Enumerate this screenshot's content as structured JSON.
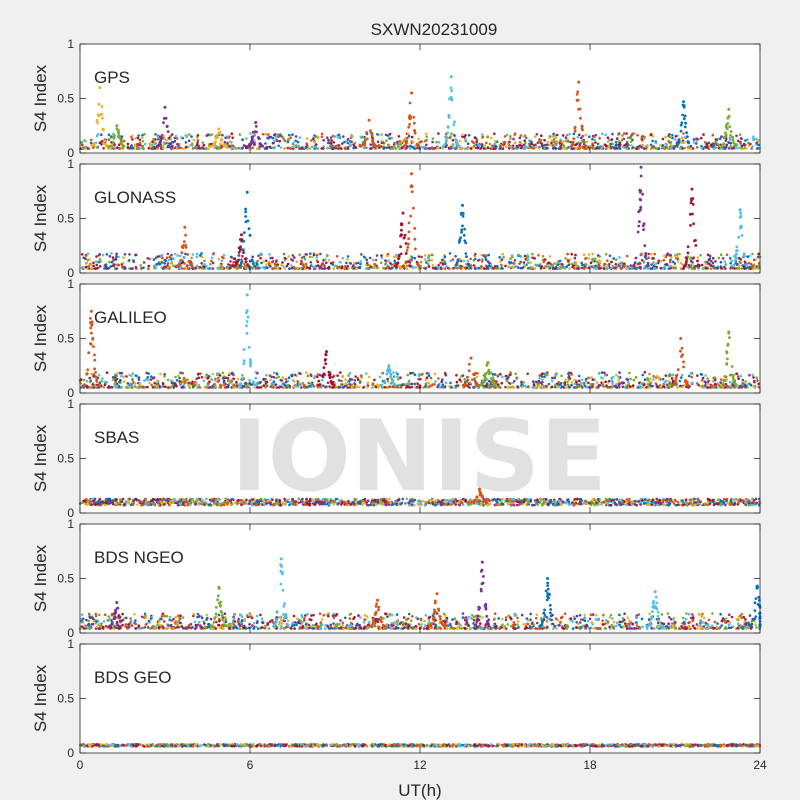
{
  "chart_data": {
    "type": "scatter",
    "title": "SXWN20231009",
    "xlabel": "UT(h)",
    "ylabel": "S4 Index",
    "xlim": [
      0,
      24
    ],
    "ylim": [
      0,
      1
    ],
    "xticks": [
      0,
      6,
      12,
      18,
      24
    ],
    "xtick_labels": [
      "0",
      "6",
      "12",
      "18",
      "24"
    ],
    "yticks": [
      0,
      0.5,
      1
    ],
    "ytick_labels": [
      "0",
      "0.5",
      "1"
    ],
    "watermark": "IONISE",
    "series_colors": [
      "#0072bd",
      "#d95319",
      "#edb120",
      "#7e2f8e",
      "#77ac30",
      "#4dbeee",
      "#a2142f"
    ],
    "panels": [
      {
        "name": "GPS",
        "baseline": 0.06,
        "spikes": [
          {
            "t": 0.7,
            "peak": 0.6,
            "color": "#edb120"
          },
          {
            "t": 1.3,
            "peak": 0.25,
            "color": "#77ac30"
          },
          {
            "t": 3.0,
            "peak": 0.42,
            "color": "#7e2f8e"
          },
          {
            "t": 4.9,
            "peak": 0.22,
            "color": "#edb120"
          },
          {
            "t": 6.2,
            "peak": 0.28,
            "color": "#7e2f8e"
          },
          {
            "t": 10.2,
            "peak": 0.3,
            "color": "#d95319"
          },
          {
            "t": 11.7,
            "peak": 0.55,
            "color": "#d95319"
          },
          {
            "t": 13.1,
            "peak": 0.7,
            "color": "#4dbeee"
          },
          {
            "t": 17.6,
            "peak": 0.65,
            "color": "#d95319"
          },
          {
            "t": 21.3,
            "peak": 0.47,
            "color": "#0072bd"
          },
          {
            "t": 22.9,
            "peak": 0.4,
            "color": "#77ac30"
          }
        ]
      },
      {
        "name": "GLONASS",
        "baseline": 0.06,
        "spikes": [
          {
            "t": 3.7,
            "peak": 0.42,
            "color": "#d95319"
          },
          {
            "t": 5.7,
            "peak": 0.35,
            "color": "#a2142f"
          },
          {
            "t": 5.9,
            "peak": 0.74,
            "color": "#0072bd"
          },
          {
            "t": 11.4,
            "peak": 0.55,
            "color": "#a2142f"
          },
          {
            "t": 11.7,
            "peak": 0.91,
            "color": "#d95319"
          },
          {
            "t": 13.5,
            "peak": 0.62,
            "color": "#0072bd"
          },
          {
            "t": 19.8,
            "peak": 0.97,
            "color": "#7e2f8e"
          },
          {
            "t": 21.6,
            "peak": 0.77,
            "color": "#a2142f"
          },
          {
            "t": 23.3,
            "peak": 0.58,
            "color": "#4dbeee"
          }
        ]
      },
      {
        "name": "GALILEO",
        "baseline": 0.07,
        "spikes": [
          {
            "t": 0.4,
            "peak": 0.75,
            "color": "#d95319"
          },
          {
            "t": 5.9,
            "peak": 0.9,
            "color": "#4dbeee"
          },
          {
            "t": 8.7,
            "peak": 0.38,
            "color": "#a2142f"
          },
          {
            "t": 10.9,
            "peak": 0.25,
            "color": "#4dbeee"
          },
          {
            "t": 13.8,
            "peak": 0.32,
            "color": "#d95319"
          },
          {
            "t": 14.4,
            "peak": 0.28,
            "color": "#77ac30"
          },
          {
            "t": 21.2,
            "peak": 0.5,
            "color": "#d95319"
          },
          {
            "t": 22.9,
            "peak": 0.56,
            "color": "#77ac30"
          }
        ]
      },
      {
        "name": "SBAS",
        "baseline": 0.1,
        "spikes": [
          {
            "t": 14.1,
            "peak": 0.22,
            "color": "#d95319"
          }
        ]
      },
      {
        "name": "BDS NGEO",
        "baseline": 0.06,
        "spikes": [
          {
            "t": 1.3,
            "peak": 0.28,
            "color": "#7e2f8e"
          },
          {
            "t": 4.9,
            "peak": 0.42,
            "color": "#77ac30"
          },
          {
            "t": 7.1,
            "peak": 0.68,
            "color": "#4dbeee"
          },
          {
            "t": 10.5,
            "peak": 0.3,
            "color": "#d95319"
          },
          {
            "t": 12.6,
            "peak": 0.36,
            "color": "#d95319"
          },
          {
            "t": 14.2,
            "peak": 0.65,
            "color": "#7e2f8e"
          },
          {
            "t": 16.5,
            "peak": 0.5,
            "color": "#0072bd"
          },
          {
            "t": 20.3,
            "peak": 0.38,
            "color": "#4dbeee"
          },
          {
            "t": 23.9,
            "peak": 0.43,
            "color": "#0072bd"
          }
        ]
      },
      {
        "name": "BDS GEO",
        "baseline": 0.07,
        "spikes": []
      }
    ]
  }
}
